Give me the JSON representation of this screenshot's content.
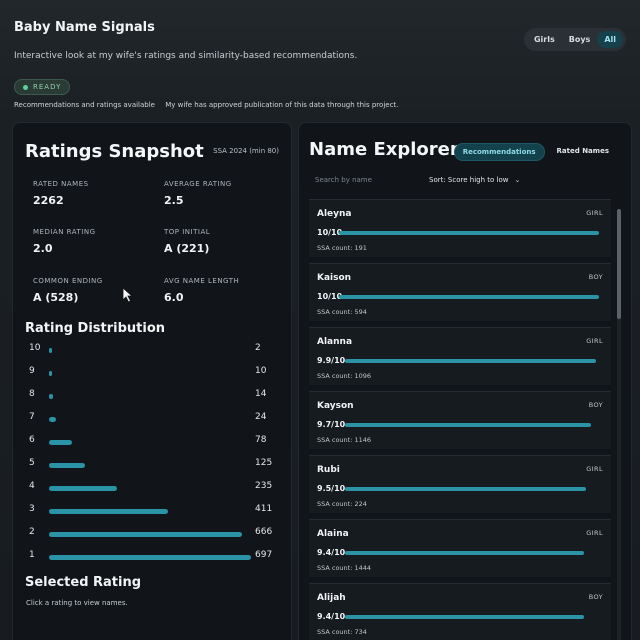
{
  "app": {
    "title": "Baby Name Signals",
    "subtitle": "Interactive look at my wife's ratings and similarity-based recommendations.",
    "filters": [
      "Girls",
      "Boys",
      "All"
    ],
    "active_filter": "All",
    "status": "READY",
    "status_messages": [
      "Recommendations and ratings available",
      "My wife has approved publication of this data through this project."
    ]
  },
  "snapshot": {
    "title": "Ratings Snapshot",
    "note": "SSA 2024 (min 80)",
    "stats": [
      {
        "label": "RATED NAMES",
        "value": "2262"
      },
      {
        "label": "AVERAGE RATING",
        "value": "2.5"
      },
      {
        "label": "MEDIAN RATING",
        "value": "2.0"
      },
      {
        "label": "TOP INITIAL",
        "value": "A (221)"
      },
      {
        "label": "COMMON ENDING",
        "value": "A (528)"
      },
      {
        "label": "AVG NAME LENGTH",
        "value": "6.0"
      }
    ]
  },
  "distribution": {
    "title": "Rating Distribution",
    "rows": [
      {
        "rating": "10",
        "count": "2",
        "value": 2
      },
      {
        "rating": "9",
        "count": "10",
        "value": 10
      },
      {
        "rating": "8",
        "count": "14",
        "value": 14
      },
      {
        "rating": "7",
        "count": "24",
        "value": 24
      },
      {
        "rating": "6",
        "count": "78",
        "value": 78
      },
      {
        "rating": "5",
        "count": "125",
        "value": 125
      },
      {
        "rating": "4",
        "count": "235",
        "value": 235
      },
      {
        "rating": "3",
        "count": "411",
        "value": 411
      },
      {
        "rating": "2",
        "count": "666",
        "value": 666
      },
      {
        "rating": "1",
        "count": "697",
        "value": 697
      }
    ]
  },
  "selected": {
    "title": "Selected Rating",
    "hint": "Click a rating to view names."
  },
  "explorer": {
    "title": "Name Explorer",
    "tabs": [
      "Recommendations",
      "Rated Names"
    ],
    "active_tab": "Recommendations",
    "search_placeholder": "Search by name",
    "sort_label": "Sort: Score high to low",
    "names": [
      {
        "name": "Aleyna",
        "gender": "GIRL",
        "score_label": "10/10",
        "score": 10,
        "count_label": "SSA count: 191"
      },
      {
        "name": "Kaison",
        "gender": "BOY",
        "score_label": "10/10",
        "score": 10,
        "count_label": "SSA count: 594"
      },
      {
        "name": "Alanna",
        "gender": "GIRL",
        "score_label": "9.9/10",
        "score": 9.9,
        "count_label": "SSA count: 1096"
      },
      {
        "name": "Kayson",
        "gender": "BOY",
        "score_label": "9.7/10",
        "score": 9.7,
        "count_label": "SSA count: 1146"
      },
      {
        "name": "Rubi",
        "gender": "GIRL",
        "score_label": "9.5/10",
        "score": 9.5,
        "count_label": "SSA count: 224"
      },
      {
        "name": "Alaina",
        "gender": "GIRL",
        "score_label": "9.4/10",
        "score": 9.4,
        "count_label": "SSA count: 1444"
      },
      {
        "name": "Alijah",
        "gender": "BOY",
        "score_label": "9.4/10",
        "score": 9.4,
        "count_label": "SSA count: 734"
      }
    ]
  },
  "colors": {
    "accent": "#2a93a7",
    "active_tab": "#14424c",
    "ready": "#5fd19a"
  }
}
